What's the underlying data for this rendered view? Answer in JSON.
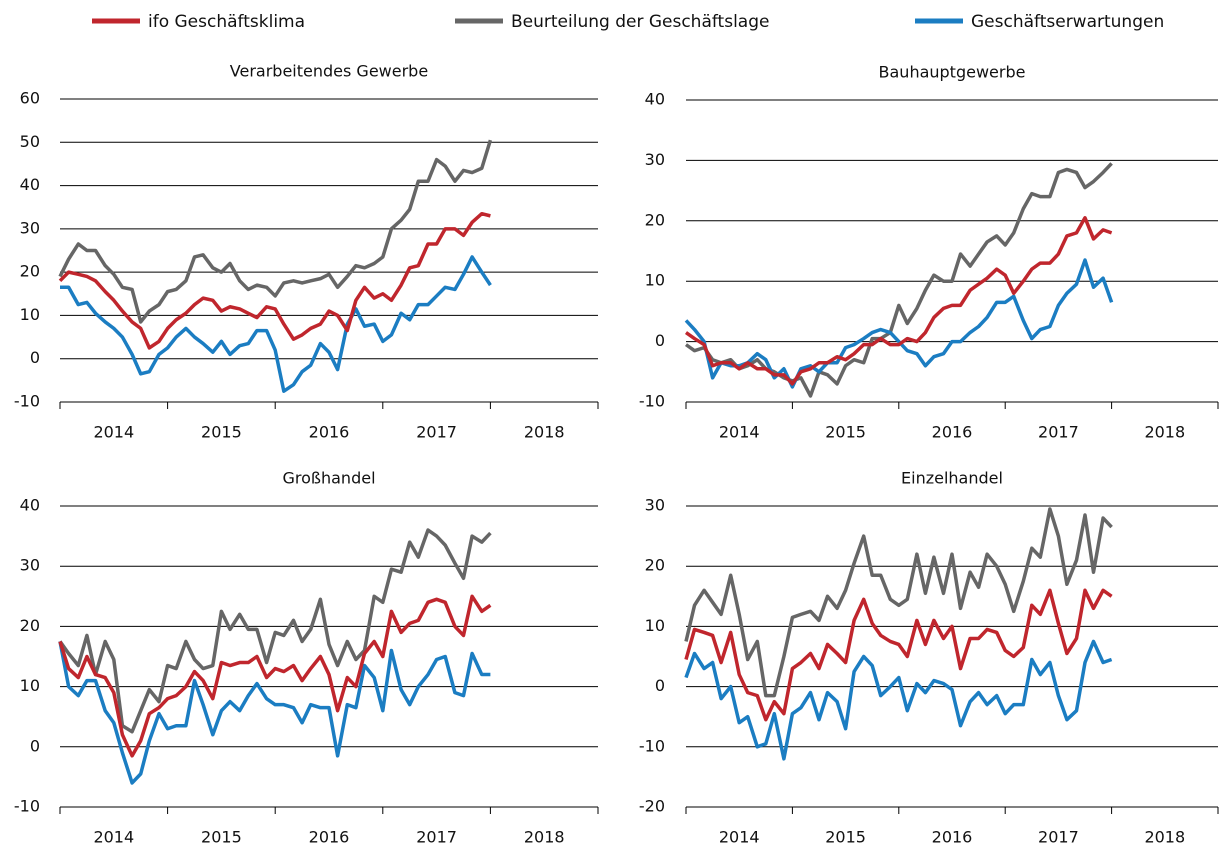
{
  "chart_data": [
    {
      "type": "line",
      "title": "Verarbeitendes Gewerbe",
      "x": [
        2014,
        2014.08,
        2014.17,
        2014.25,
        2014.33,
        2014.42,
        2014.5,
        2014.58,
        2014.67,
        2014.75,
        2014.83,
        2014.92,
        2015,
        2015.08,
        2015.17,
        2015.25,
        2015.33,
        2015.42,
        2015.5,
        2015.58,
        2015.67,
        2015.75,
        2015.83,
        2015.92,
        2016,
        2016.08,
        2016.17,
        2016.25,
        2016.33,
        2016.42,
        2016.5,
        2016.58,
        2016.67,
        2016.75,
        2016.83,
        2016.92,
        2017,
        2017.08,
        2017.17,
        2017.25,
        2017.33,
        2017.42,
        2017.5,
        2017.58,
        2017.67,
        2017.75,
        2017.83,
        2017.92,
        2018
      ],
      "xlim": [
        2014,
        2019
      ],
      "xticks": [
        {
          "value": 2014.5,
          "label": "2014"
        },
        {
          "value": 2015.5,
          "label": "2015"
        },
        {
          "value": 2016.5,
          "label": "2016"
        },
        {
          "value": 2017.5,
          "label": "2017"
        },
        {
          "value": 2018.5,
          "label": "2018"
        }
      ],
      "ylim": [
        -10,
        60
      ],
      "yticks": [
        -10,
        0,
        10,
        20,
        30,
        40,
        50,
        60
      ],
      "series": [
        {
          "name": "ifo Geschäftsklima",
          "color": "#c0262d",
          "values": [
            18,
            20,
            19.5,
            19,
            18,
            15.5,
            13.5,
            11,
            8.5,
            7,
            2.5,
            4,
            7,
            9,
            10.5,
            12.5,
            14,
            13.5,
            11,
            12,
            11.5,
            10.5,
            9.5,
            12,
            11.5,
            8,
            4.5,
            5.5,
            7,
            8,
            11,
            10,
            6.5,
            13.5,
            16.5,
            14,
            15,
            13.5,
            17,
            21,
            21.5,
            26.5,
            26.5,
            30,
            30,
            28.5,
            31.5,
            33.5,
            33
          ]
        },
        {
          "name": "Beurteilung der Geschäftslage",
          "color": "#666666",
          "values": [
            19,
            23,
            26.5,
            25,
            25,
            21.5,
            19.5,
            16.5,
            16,
            8.5,
            11,
            12.5,
            15.5,
            16,
            18,
            23.5,
            24,
            21,
            20,
            22,
            18,
            16,
            17,
            16.5,
            14.5,
            17.5,
            18,
            17.5,
            18,
            18.5,
            19.5,
            16.5,
            19,
            21.5,
            21,
            22,
            23.5,
            30,
            32,
            34.5,
            41,
            41,
            46,
            44.5,
            41,
            43.5,
            43,
            44,
            50.5
          ]
        },
        {
          "name": "Geschäftserwartungen",
          "color": "#1b7dc2",
          "values": [
            16.5,
            16.5,
            12.5,
            13,
            10.5,
            8.5,
            7,
            5,
            1,
            -3.5,
            -3,
            1,
            2.5,
            5,
            7,
            5,
            3.5,
            1.5,
            4,
            1,
            3,
            3.5,
            6.5,
            6.5,
            2,
            -7.5,
            -6,
            -3,
            -1.5,
            3.5,
            1.5,
            -2.5,
            8,
            11.5,
            7.5,
            8,
            4,
            5.5,
            10.5,
            9,
            12.5,
            12.5,
            14.5,
            16.5,
            16,
            19.5,
            23.5,
            20,
            17
          ]
        }
      ]
    },
    {
      "type": "line",
      "title": "Bauhauptgewerbe",
      "x": [
        2014,
        2014.08,
        2014.17,
        2014.25,
        2014.33,
        2014.42,
        2014.5,
        2014.58,
        2014.67,
        2014.75,
        2014.83,
        2014.92,
        2015,
        2015.08,
        2015.17,
        2015.25,
        2015.33,
        2015.42,
        2015.5,
        2015.58,
        2015.67,
        2015.75,
        2015.83,
        2015.92,
        2016,
        2016.08,
        2016.17,
        2016.25,
        2016.33,
        2016.42,
        2016.5,
        2016.58,
        2016.67,
        2016.75,
        2016.83,
        2016.92,
        2017,
        2017.08,
        2017.17,
        2017.25,
        2017.33,
        2017.42,
        2017.5,
        2017.58,
        2017.67,
        2017.75,
        2017.83,
        2017.92,
        2018
      ],
      "xlim": [
        2014,
        2019
      ],
      "xticks": [
        {
          "value": 2014.5,
          "label": "2014"
        },
        {
          "value": 2015.5,
          "label": "2015"
        },
        {
          "value": 2016.5,
          "label": "2016"
        },
        {
          "value": 2017.5,
          "label": "2017"
        },
        {
          "value": 2018.5,
          "label": "2018"
        }
      ],
      "ylim": [
        -10,
        40
      ],
      "yticks": [
        -10,
        0,
        10,
        20,
        30,
        40
      ],
      "series": [
        {
          "color": "#c0262d",
          "values": [
            1.5,
            0.5,
            -0.5,
            -4,
            -3.5,
            -3.5,
            -4.5,
            -3.5,
            -4.5,
            -4.5,
            -5.5,
            -5.5,
            -7,
            -5,
            -4.5,
            -3.5,
            -3.5,
            -2.5,
            -3,
            -2,
            -0.5,
            -0.5,
            0.5,
            -0.5,
            -0.5,
            0.5,
            0,
            1.5,
            4,
            5.5,
            6,
            6,
            8.5,
            9.5,
            10.5,
            12,
            11,
            8,
            10,
            12,
            13,
            13,
            14.5,
            17.5,
            18,
            20.5,
            17,
            18.5,
            18
          ]
        },
        {
          "color": "#666666",
          "values": [
            -0.5,
            -1.5,
            -1,
            -3,
            -3.5,
            -3,
            -4.5,
            -4,
            -3,
            -4.5,
            -5,
            -6,
            -6.5,
            -6,
            -9,
            -5,
            -5.5,
            -7,
            -4,
            -3,
            -3.5,
            0.5,
            0.5,
            1.5,
            6,
            3,
            5.5,
            8.5,
            11,
            10,
            10,
            14.5,
            12.5,
            14.5,
            16.5,
            17.5,
            16,
            18,
            22,
            24.5,
            24,
            24,
            28,
            28.5,
            28,
            25.5,
            26.5,
            28,
            29.5
          ]
        },
        {
          "color": "#1b7dc2",
          "values": [
            3.5,
            2,
            0,
            -6,
            -3.5,
            -4,
            -4,
            -3.5,
            -2,
            -3,
            -6,
            -4.5,
            -7.5,
            -4.5,
            -4,
            -5,
            -3.5,
            -3.5,
            -1,
            -0.5,
            0.5,
            1.5,
            2,
            1.5,
            0,
            -1.5,
            -2,
            -4,
            -2.5,
            -2,
            0,
            0,
            1.5,
            2.5,
            4,
            6.5,
            6.5,
            7.5,
            3.5,
            0.5,
            2,
            2.5,
            6,
            8,
            9.5,
            13.5,
            9,
            10.5,
            6.5
          ]
        }
      ]
    },
    {
      "type": "line",
      "title": "Großhandel",
      "x": [
        2014,
        2014.08,
        2014.17,
        2014.25,
        2014.33,
        2014.42,
        2014.5,
        2014.58,
        2014.67,
        2014.75,
        2014.83,
        2014.92,
        2015,
        2015.08,
        2015.17,
        2015.25,
        2015.33,
        2015.42,
        2015.5,
        2015.58,
        2015.67,
        2015.75,
        2015.83,
        2015.92,
        2016,
        2016.08,
        2016.17,
        2016.25,
        2016.33,
        2016.42,
        2016.5,
        2016.58,
        2016.67,
        2016.75,
        2016.83,
        2016.92,
        2017,
        2017.08,
        2017.17,
        2017.25,
        2017.33,
        2017.42,
        2017.5,
        2017.58,
        2017.67,
        2017.75,
        2017.83,
        2017.92,
        2018
      ],
      "xlim": [
        2014,
        2019
      ],
      "xticks": [
        {
          "value": 2014.5,
          "label": "2014"
        },
        {
          "value": 2015.5,
          "label": "2015"
        },
        {
          "value": 2016.5,
          "label": "2016"
        },
        {
          "value": 2017.5,
          "label": "2017"
        },
        {
          "value": 2018.5,
          "label": "2018"
        }
      ],
      "ylim": [
        -10,
        40
      ],
      "yticks": [
        -10,
        0,
        10,
        20,
        30,
        40
      ],
      "series": [
        {
          "color": "#c0262d",
          "values": [
            17.5,
            13,
            11.5,
            15,
            12,
            11.5,
            9,
            2,
            -1.5,
            1,
            5.5,
            6.5,
            8,
            8.5,
            10,
            12.5,
            11,
            8,
            14,
            13.5,
            14,
            14,
            15,
            11.5,
            13,
            12.5,
            13.5,
            11,
            13,
            15,
            12,
            6,
            11.5,
            10,
            15.5,
            17.5,
            15,
            22.5,
            19,
            20.5,
            21,
            24,
            24.5,
            24,
            20,
            18.5,
            25,
            22.5,
            23.5
          ]
        },
        {
          "color": "#666666",
          "values": [
            17.5,
            15.5,
            13.5,
            18.5,
            12,
            17.5,
            14.5,
            3.5,
            2.5,
            6,
            9.5,
            7.5,
            13.5,
            13,
            17.5,
            14.5,
            13,
            13.5,
            22.5,
            19.5,
            22,
            19.5,
            19.5,
            14,
            19,
            18.5,
            21,
            17.5,
            19.5,
            24.5,
            17,
            13.5,
            17.5,
            14.5,
            16,
            25,
            24,
            29.5,
            29,
            34,
            31.5,
            36,
            35,
            33.5,
            30.5,
            28,
            35,
            34,
            35.5
          ]
        },
        {
          "color": "#1b7dc2",
          "values": [
            17.5,
            10,
            8.5,
            11,
            11,
            6,
            4,
            -1,
            -6,
            -4.5,
            1,
            5.5,
            3,
            3.5,
            3.5,
            11,
            7,
            2,
            6,
            7.5,
            6,
            8.5,
            10.5,
            8,
            7,
            7,
            6.5,
            4,
            7,
            6.5,
            6.5,
            -1.5,
            7,
            6.5,
            13.5,
            11.5,
            6,
            16,
            9.5,
            7,
            10,
            12,
            14.5,
            15,
            9,
            8.5,
            15.5,
            12,
            12
          ]
        }
      ]
    },
    {
      "type": "line",
      "title": "Einzelhandel",
      "x": [
        2014,
        2014.08,
        2014.17,
        2014.25,
        2014.33,
        2014.42,
        2014.5,
        2014.58,
        2014.67,
        2014.75,
        2014.83,
        2014.92,
        2015,
        2015.08,
        2015.17,
        2015.25,
        2015.33,
        2015.42,
        2015.5,
        2015.58,
        2015.67,
        2015.75,
        2015.83,
        2015.92,
        2016,
        2016.08,
        2016.17,
        2016.25,
        2016.33,
        2016.42,
        2016.5,
        2016.58,
        2016.67,
        2016.75,
        2016.83,
        2016.92,
        2017,
        2017.08,
        2017.17,
        2017.25,
        2017.33,
        2017.42,
        2017.5,
        2017.58,
        2017.67,
        2017.75,
        2017.83,
        2017.92,
        2018
      ],
      "xlim": [
        2014,
        2019
      ],
      "xticks": [
        {
          "value": 2014.5,
          "label": "2014"
        },
        {
          "value": 2015.5,
          "label": "2015"
        },
        {
          "value": 2016.5,
          "label": "2016"
        },
        {
          "value": 2017.5,
          "label": "2017"
        },
        {
          "value": 2018.5,
          "label": "2018"
        }
      ],
      "ylim": [
        -20,
        30
      ],
      "yticks": [
        -20,
        -10,
        0,
        10,
        20,
        30
      ],
      "series": [
        {
          "color": "#c0262d",
          "values": [
            4.5,
            9.5,
            9,
            8.5,
            4,
            9,
            2,
            -1,
            -1.5,
            -5.5,
            -2.5,
            -4.5,
            3,
            4,
            5.5,
            3,
            7,
            5.5,
            4,
            11,
            14.5,
            10.5,
            8.5,
            7.5,
            7,
            5,
            11,
            7,
            11,
            8,
            10,
            3,
            8,
            8,
            9.5,
            9,
            6,
            5,
            6.5,
            13.5,
            12,
            16,
            10.5,
            5.5,
            8,
            16,
            13,
            16,
            15
          ]
        },
        {
          "color": "#666666",
          "values": [
            7.5,
            13.5,
            16,
            14,
            12,
            18.5,
            12,
            4.5,
            7.5,
            -1.5,
            -1.5,
            5,
            11.5,
            12,
            12.5,
            11,
            15,
            13,
            16,
            20.5,
            25,
            18.5,
            18.5,
            14.5,
            13.5,
            14.5,
            22,
            15.5,
            21.5,
            15.5,
            22,
            13,
            19,
            16.5,
            22,
            20,
            17,
            12.5,
            17.5,
            23,
            21.5,
            29.5,
            25,
            17,
            21,
            28.5,
            19,
            28,
            26.5
          ]
        },
        {
          "color": "#1b7dc2",
          "values": [
            1.5,
            5.5,
            3,
            4,
            -2,
            0,
            -6,
            -5,
            -10,
            -9.5,
            -4.5,
            -12,
            -4.5,
            -3.5,
            -1,
            -5.5,
            -1,
            -2.5,
            -7,
            2.5,
            5,
            3.5,
            -1.5,
            0,
            1.5,
            -4,
            0.5,
            -1,
            1,
            0.5,
            -0.5,
            -6.5,
            -2.5,
            -1,
            -3,
            -1.5,
            -4.5,
            -3,
            -3,
            4.5,
            2,
            4,
            -1.5,
            -5.5,
            -4,
            4,
            7.5,
            4,
            4.5
          ]
        }
      ]
    }
  ]
}
